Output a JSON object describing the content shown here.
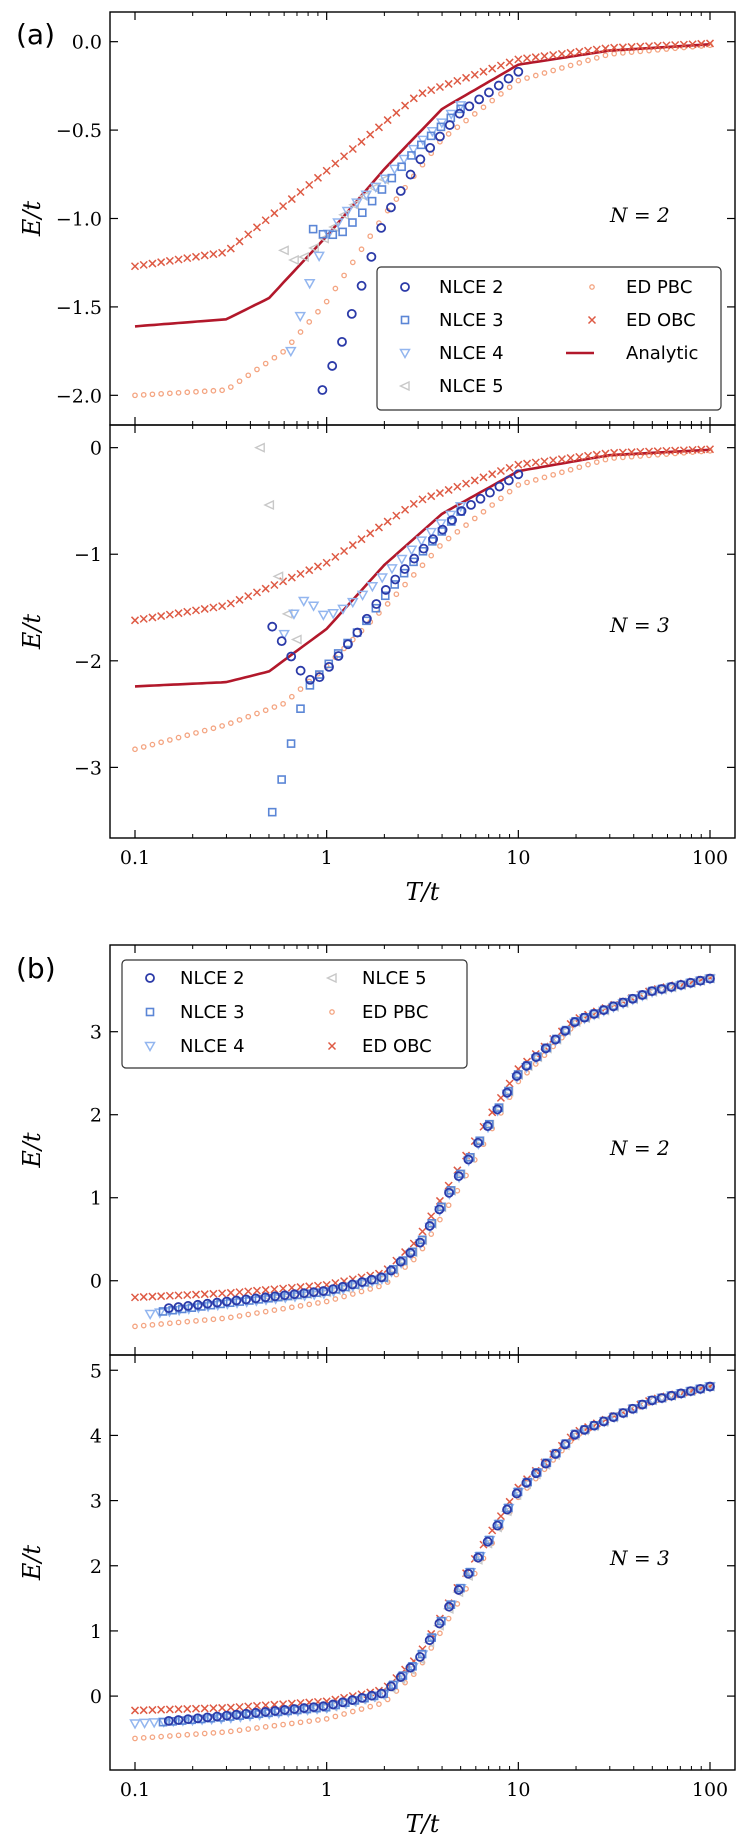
{
  "figure": {
    "panel_labels": [
      "(a)",
      "(b)"
    ],
    "x_tick_labels": [
      "0.1",
      "1",
      "10",
      "100"
    ],
    "xlabel": "T/t",
    "ylabel": "E/t"
  },
  "legend_a": {
    "entries": [
      "NLCE 2",
      "NLCE 3",
      "NLCE 4",
      "NLCE 5",
      "ED PBC",
      "ED OBC",
      "Analytic"
    ]
  },
  "legend_b": {
    "entries": [
      "NLCE 2",
      "NLCE 3",
      "NLCE 4",
      "NLCE 5",
      "ED PBC",
      "ED OBC"
    ]
  },
  "colors": {
    "nlce2": "#2b3aa8",
    "nlce3": "#5b86d6",
    "nlce4": "#93b6ef",
    "nlce5": "#c8c8c8",
    "ed_pbc": "#f4a582",
    "ed_obc": "#de5a44",
    "analytic": "#b2182b"
  },
  "chart_data": [
    {
      "id": "a1",
      "type": "scatter",
      "xscale": "log",
      "xlim": [
        0.1,
        100
      ],
      "ylim": [
        -2.1,
        0.1
      ],
      "yticks": [
        0.0,
        -0.5,
        -1.0,
        -1.5,
        -2.0
      ],
      "ytick_labels": [
        "0.0",
        "−0.5",
        "−1.0",
        "−1.5",
        "−2.0"
      ],
      "annotation": "N = 2",
      "xlabel": "",
      "ylabel": "E/t",
      "curves": {
        "ed_obc": {
          "name": "ED OBC",
          "x": [
            0.1,
            0.3,
            1,
            3,
            10,
            30,
            100
          ],
          "y": [
            -1.27,
            -1.19,
            -0.73,
            -0.3,
            -0.1,
            -0.035,
            -0.01
          ]
        },
        "ed_pbc": {
          "name": "ED PBC",
          "x": [
            0.1,
            0.3,
            0.6,
            1,
            2,
            4,
            10,
            30,
            100
          ],
          "y": [
            -2.0,
            -1.97,
            -1.75,
            -1.47,
            -0.98,
            -0.55,
            -0.22,
            -0.07,
            -0.02
          ]
        },
        "analytic": {
          "name": "Analytic",
          "x": [
            0.1,
            0.3,
            0.5,
            1,
            2,
            4,
            10,
            30,
            100
          ],
          "y": [
            -1.61,
            -1.57,
            -1.45,
            -1.1,
            -0.72,
            -0.38,
            -0.13,
            -0.05,
            -0.015
          ]
        },
        "nlce2": {
          "name": "NLCE 2",
          "x": [
            0.95,
            1.2,
            1.5,
            2,
            3,
            5,
            10
          ],
          "y": [
            -1.97,
            -1.7,
            -1.4,
            -1.0,
            -0.68,
            -0.4,
            -0.17
          ]
        },
        "nlce3": {
          "name": "NLCE 3",
          "x": [
            0.85,
            1,
            1.2,
            1.5,
            2,
            3,
            5
          ],
          "y": [
            -1.06,
            -1.1,
            -1.08,
            -0.98,
            -0.82,
            -0.6,
            -0.38
          ]
        },
        "nlce4": {
          "name": "NLCE 4",
          "x": [
            0.65,
            0.75,
            0.85,
            1,
            1.3,
            2,
            3,
            5
          ],
          "y": [
            -1.75,
            -1.5,
            -1.3,
            -1.1,
            -0.95,
            -0.78,
            -0.58,
            -0.36
          ]
        },
        "nlce5": {
          "name": "NLCE 5",
          "x": [
            0.6,
            0.7,
            0.8,
            1,
            1.3,
            2
          ],
          "y": [
            -1.18,
            -1.25,
            -1.2,
            -1.1,
            -0.95,
            -0.78
          ]
        }
      }
    },
    {
      "id": "a2",
      "type": "scatter",
      "xscale": "log",
      "xlim": [
        0.1,
        100
      ],
      "ylim": [
        -3.55,
        0.1
      ],
      "yticks": [
        0,
        -1,
        -2,
        -3
      ],
      "ytick_labels": [
        "0",
        "−1",
        "−2",
        "−3"
      ],
      "annotation": "N = 3",
      "xlabel": "T/t",
      "ylabel": "E/t",
      "curves": {
        "ed_obc": {
          "name": "ED OBC",
          "x": [
            0.1,
            0.3,
            1,
            3,
            10,
            30,
            100
          ],
          "y": [
            -1.62,
            -1.48,
            -1.08,
            -0.5,
            -0.16,
            -0.05,
            -0.015
          ]
        },
        "ed_pbc": {
          "name": "ED PBC",
          "x": [
            0.1,
            0.3,
            0.6,
            1,
            2,
            4,
            10,
            30,
            100
          ],
          "y": [
            -2.83,
            -2.6,
            -2.4,
            -2.05,
            -1.5,
            -0.9,
            -0.35,
            -0.1,
            -0.03
          ]
        },
        "analytic": {
          "name": "Analytic",
          "x": [
            0.1,
            0.3,
            0.5,
            1,
            2,
            4,
            10,
            30,
            100
          ],
          "y": [
            -2.24,
            -2.2,
            -2.1,
            -1.7,
            -1.1,
            -0.62,
            -0.22,
            -0.07,
            -0.02
          ]
        },
        "nlce2": {
          "name": "NLCE 2",
          "x": [
            0.52,
            0.6,
            0.7,
            0.8,
            0.9,
            1.1,
            1.5,
            2,
            3,
            5,
            10
          ],
          "y": [
            -1.68,
            -1.85,
            -2.05,
            -2.18,
            -2.17,
            -2.0,
            -1.7,
            -1.35,
            -1.0,
            -0.6,
            -0.25
          ]
        },
        "nlce3": {
          "name": "NLCE 3",
          "x": [
            0.52,
            0.57,
            0.62,
            0.67,
            0.72,
            0.8,
            1,
            1.5,
            2,
            3,
            5
          ],
          "y": [
            -3.42,
            -3.18,
            -2.92,
            -2.7,
            -2.48,
            -2.25,
            -2.05,
            -1.7,
            -1.4,
            -1.02,
            -0.6
          ]
        },
        "nlce4": {
          "name": "NLCE 4",
          "x": [
            0.6,
            0.7,
            0.8,
            0.9,
            1,
            1.2,
            1.5,
            2,
            3,
            5
          ],
          "y": [
            -1.75,
            -1.5,
            -1.4,
            -1.55,
            -1.58,
            -1.52,
            -1.4,
            -1.2,
            -0.9,
            -0.55
          ]
        },
        "nlce5": {
          "name": "NLCE 5",
          "x": [
            0.45,
            0.5,
            0.53,
            0.56,
            0.6,
            0.65,
            0.7
          ],
          "y": [
            0.0,
            -0.5,
            -0.93,
            -1.2,
            -1.45,
            -1.65,
            -1.8
          ]
        }
      }
    },
    {
      "id": "b1",
      "type": "scatter",
      "xscale": "log",
      "xlim": [
        0.1,
        100
      ],
      "ylim": [
        -0.75,
        3.9
      ],
      "yticks": [
        3,
        2,
        1,
        0
      ],
      "ytick_labels": [
        "3",
        "2",
        "1",
        "0"
      ],
      "annotation": "N = 2",
      "xlabel": "",
      "ylabel": "E/t",
      "curves": {
        "ed_obc": {
          "name": "ED OBC",
          "x": [
            0.1,
            0.3,
            1,
            2,
            3,
            5,
            10,
            20,
            50,
            100
          ],
          "y": [
            -0.2,
            -0.15,
            -0.05,
            0.1,
            0.5,
            1.4,
            2.55,
            3.15,
            3.5,
            3.65
          ]
        },
        "ed_pbc": {
          "name": "ED PBC",
          "x": [
            0.1,
            0.3,
            1,
            2,
            3,
            5,
            10,
            20,
            50,
            100
          ],
          "y": [
            -0.55,
            -0.45,
            -0.25,
            -0.05,
            0.3,
            1.15,
            2.4,
            3.1,
            3.48,
            3.63
          ]
        },
        "nlce2": {
          "name": "NLCE 2",
          "x": [
            0.15,
            0.3,
            1,
            2,
            3,
            5,
            10,
            20,
            50,
            100
          ],
          "y": [
            -0.33,
            -0.25,
            -0.12,
            0.05,
            0.42,
            1.3,
            2.5,
            3.13,
            3.49,
            3.64
          ]
        },
        "nlce3": {
          "name": "NLCE 3",
          "x": [
            0.14,
            0.3,
            1,
            2,
            3,
            5,
            10,
            20,
            50,
            100
          ],
          "y": [
            -0.37,
            -0.27,
            -0.13,
            0.04,
            0.41,
            1.29,
            2.49,
            3.13,
            3.49,
            3.64
          ]
        },
        "nlce4": {
          "name": "NLCE 4",
          "x": [
            0.12,
            0.3,
            1,
            2,
            3,
            5,
            10,
            20,
            50,
            100
          ],
          "y": [
            -0.4,
            -0.28,
            -0.15,
            0.03,
            0.4,
            1.28,
            2.48,
            3.12,
            3.48,
            3.64
          ]
        },
        "nlce5": {
          "name": "NLCE 5",
          "x": [
            0.5,
            1,
            2,
            3,
            5,
            10,
            20,
            50,
            100
          ],
          "y": [
            -0.2,
            -0.14,
            0.03,
            0.4,
            1.28,
            2.48,
            3.12,
            3.48,
            3.64
          ]
        }
      }
    },
    {
      "id": "b2",
      "type": "scatter",
      "xscale": "log",
      "xlim": [
        0.1,
        100
      ],
      "ylim": [
        -0.95,
        5.05
      ],
      "yticks": [
        5,
        4,
        3,
        2,
        1,
        0
      ],
      "ytick_labels": [
        "5",
        "4",
        "3",
        "2",
        "1",
        "0"
      ],
      "annotation": "N = 3",
      "xlabel": "T/t",
      "ylabel": "E/t",
      "curves": {
        "ed_obc": {
          "name": "ED OBC",
          "x": [
            0.1,
            0.3,
            1,
            2,
            3,
            5,
            10,
            20,
            50,
            100
          ],
          "y": [
            -0.22,
            -0.18,
            -0.08,
            0.1,
            0.6,
            1.75,
            3.2,
            4.05,
            4.55,
            4.75
          ]
        },
        "ed_pbc": {
          "name": "ED PBC",
          "x": [
            0.1,
            0.3,
            1,
            2,
            3,
            5,
            10,
            20,
            50,
            100
          ],
          "y": [
            -0.65,
            -0.55,
            -0.35,
            -0.1,
            0.4,
            1.5,
            3.05,
            4.0,
            4.52,
            4.74
          ]
        },
        "nlce2": {
          "name": "NLCE 2",
          "x": [
            0.15,
            0.3,
            1,
            2,
            3,
            5,
            10,
            20,
            50,
            100
          ],
          "y": [
            -0.38,
            -0.3,
            -0.15,
            0.05,
            0.55,
            1.68,
            3.15,
            4.03,
            4.54,
            4.75
          ]
        },
        "nlce3": {
          "name": "NLCE 3",
          "x": [
            0.14,
            0.3,
            1,
            2,
            3,
            5,
            10,
            20,
            50,
            100
          ],
          "y": [
            -0.4,
            -0.32,
            -0.17,
            0.04,
            0.54,
            1.66,
            3.14,
            4.03,
            4.54,
            4.75
          ]
        },
        "nlce4": {
          "name": "NLCE 4",
          "x": [
            0.1,
            0.3,
            1,
            2,
            3,
            5,
            10,
            20,
            50,
            100
          ],
          "y": [
            -0.42,
            -0.34,
            -0.18,
            0.03,
            0.52,
            1.65,
            3.13,
            4.02,
            4.54,
            4.75
          ]
        },
        "nlce5": {
          "name": "NLCE 5",
          "x": [
            0.3,
            1,
            2,
            3,
            5,
            10,
            20,
            50,
            100
          ],
          "y": [
            -0.3,
            -0.18,
            0.03,
            0.52,
            1.65,
            3.13,
            4.02,
            4.54,
            4.75
          ]
        }
      }
    }
  ]
}
